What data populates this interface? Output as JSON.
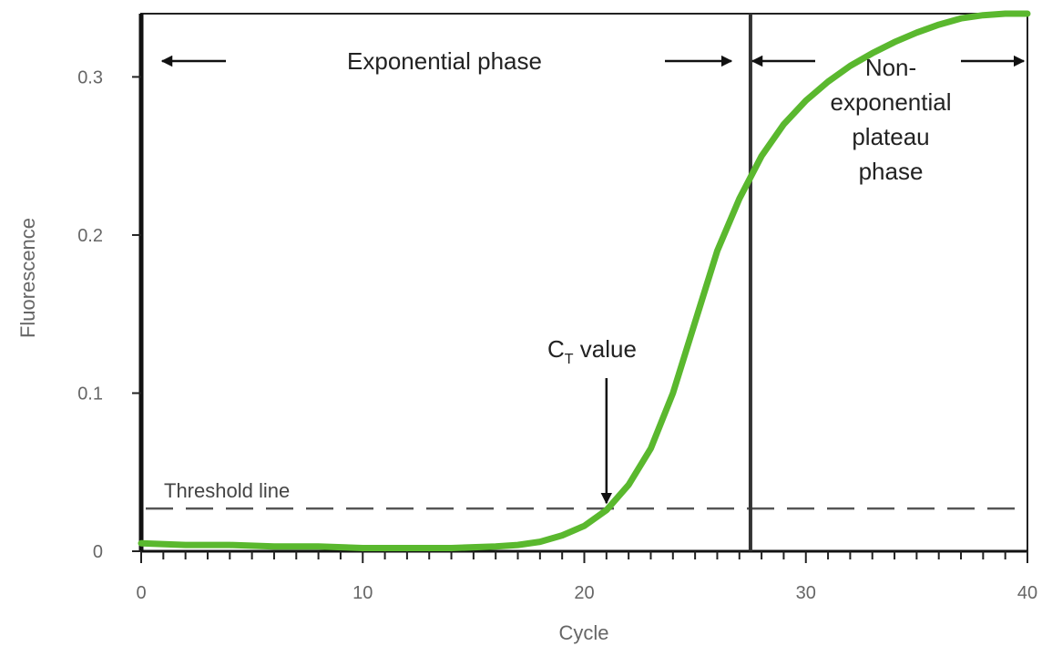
{
  "chart_data": {
    "type": "line",
    "title": "",
    "xlabel": "Cycle",
    "ylabel": "Fluorescence",
    "xlim": [
      0,
      40
    ],
    "ylim": [
      0,
      0.34
    ],
    "x_ticks": [
      0,
      10,
      20,
      30,
      40
    ],
    "x_minor_tick_step": 1,
    "y_ticks": [
      0,
      0.1,
      0.2,
      0.3
    ],
    "y_tick_labels": [
      "0",
      "0.1",
      "0.2",
      "0.3"
    ],
    "grid": false,
    "legend": false,
    "series": [
      {
        "color": "#5ab82e",
        "x": [
          0,
          2,
          4,
          6,
          8,
          10,
          12,
          14,
          16,
          17,
          18,
          19,
          20,
          21,
          22,
          23,
          24,
          25,
          26,
          27,
          28,
          29,
          30,
          31,
          32,
          33,
          34,
          35,
          36,
          37,
          38,
          39,
          40
        ],
        "y": [
          0.005,
          0.004,
          0.004,
          0.003,
          0.003,
          0.002,
          0.002,
          0.002,
          0.003,
          0.004,
          0.006,
          0.01,
          0.016,
          0.026,
          0.042,
          0.065,
          0.1,
          0.145,
          0.19,
          0.223,
          0.25,
          0.27,
          0.285,
          0.297,
          0.307,
          0.315,
          0.322,
          0.328,
          0.333,
          0.337,
          0.339,
          0.34,
          0.34
        ]
      }
    ],
    "threshold": {
      "value": 0.027,
      "label": "Threshold line",
      "color": "#555555",
      "style": "dashed"
    },
    "phase_boundary": {
      "x": 27.5,
      "color": "#333333"
    },
    "phases": {
      "left_label": "Exponential phase",
      "right_label_lines": [
        "Non-",
        "exponential",
        "plateau",
        "phase"
      ]
    },
    "ct_marker": {
      "x": 21,
      "label_main": "C",
      "label_sub": "T",
      "label_rest": " value"
    }
  }
}
